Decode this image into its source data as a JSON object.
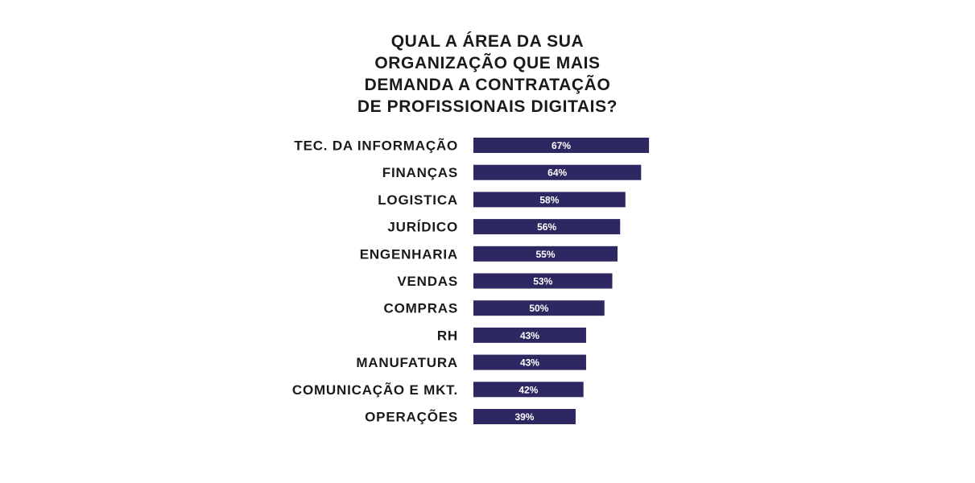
{
  "chart_data": {
    "type": "bar",
    "orientation": "horizontal",
    "title_lines": [
      "QUAL A ÁREA DA SUA",
      "ORGANIZAÇÃO QUE MAIS",
      "DEMANDA A CONTRATAÇÃO",
      "DE PROFISSIONAIS DIGITAIS?"
    ],
    "categories": [
      "TEC. DA INFORMAÇÃO",
      "FINANÇAS",
      "LOGISTICA",
      "JURÍDICO",
      "ENGENHARIA",
      "VENDAS",
      "COMPRAS",
      "RH",
      "MANUFATURA",
      "COMUNICAÇÃO E MKT.",
      "OPERAÇÕES"
    ],
    "values": [
      67,
      64,
      58,
      56,
      55,
      53,
      50,
      43,
      43,
      42,
      39
    ],
    "value_labels": [
      "67%",
      "64%",
      "58%",
      "56%",
      "55%",
      "53%",
      "50%",
      "43%",
      "43%",
      "42%",
      "39%"
    ],
    "unit": "%",
    "xlim": [
      0,
      100
    ],
    "grid": false,
    "legend": "none",
    "bar_color": "#2e2862",
    "label_color": "#1a1a1a",
    "value_label_color": "#ffffff"
  }
}
